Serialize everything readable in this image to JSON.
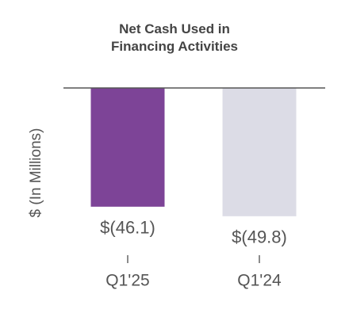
{
  "chart_data": {
    "type": "bar",
    "title": "Net Cash Used in Financing Activities",
    "y_label": "$ (In Millions)",
    "categories": [
      "Q1'25",
      "Q1'24"
    ],
    "values": [
      -46.1,
      -49.8
    ],
    "value_labels": [
      "$(46.1)",
      "$(49.8)"
    ],
    "colors": [
      "#7d4497",
      "#dcdce6"
    ],
    "ylim": [
      -60,
      0
    ]
  }
}
